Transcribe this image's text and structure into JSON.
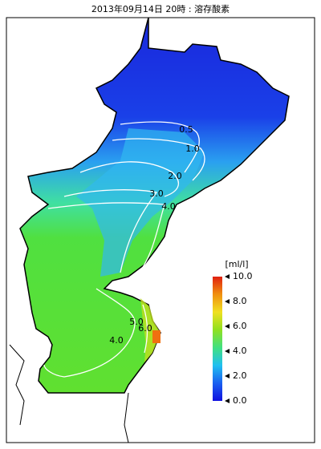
{
  "title": "2013年09月14日 20時 : 溶存酸素",
  "colorbar": {
    "label": "[ml/l]",
    "range": [
      0,
      10
    ],
    "ticks": [
      {
        "value": 0,
        "label": "0.0"
      },
      {
        "value": 2,
        "label": "2.0"
      },
      {
        "value": 4,
        "label": "4.0"
      },
      {
        "value": 6,
        "label": "6.0"
      },
      {
        "value": 8,
        "label": "8.0"
      },
      {
        "value": 10,
        "label": "10.0"
      }
    ],
    "colors": [
      "#1010e0",
      "#1a60f0",
      "#20c0f0",
      "#40e080",
      "#90e020",
      "#f0e020",
      "#f09010",
      "#e02010"
    ]
  },
  "contours": [
    {
      "value": 0.5,
      "label": "0.5"
    },
    {
      "value": 1,
      "label": "1.0"
    },
    {
      "value": 2,
      "label": "2.0"
    },
    {
      "value": 3,
      "label": "3.0"
    },
    {
      "value": 4,
      "label": "4.0"
    },
    {
      "value": 5,
      "label": "5.0"
    },
    {
      "value": 6,
      "label": "6.0"
    },
    {
      "value": 4,
      "label": "4.0"
    }
  ]
}
